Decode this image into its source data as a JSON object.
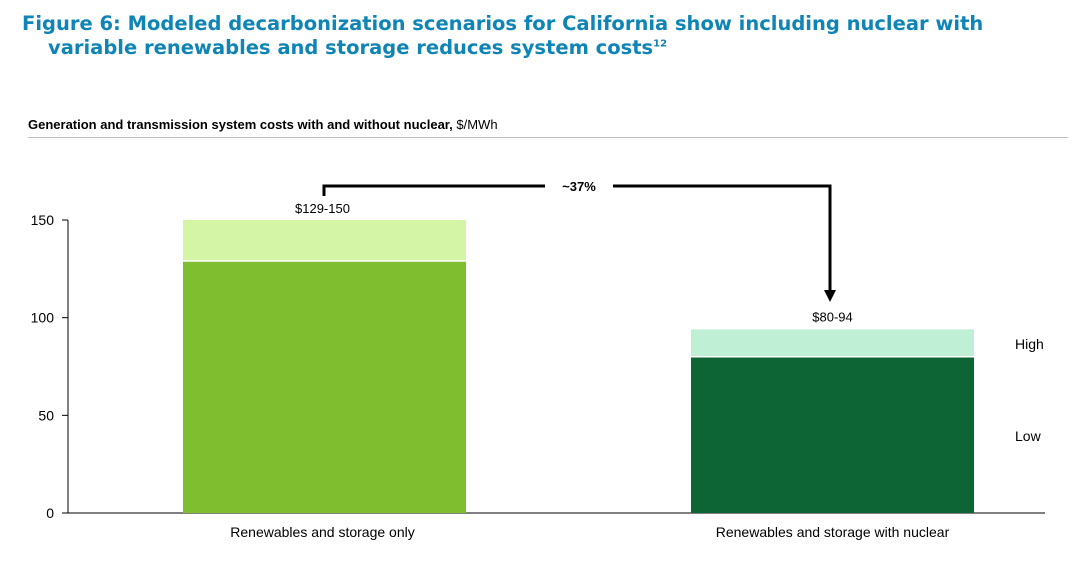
{
  "figure": {
    "title_line1": "Figure 6: Modeled decarbonization scenarios for California show including nuclear with",
    "title_line2": "variable renewables and storage reduces system costs",
    "title_footnote": "12",
    "subtitle_bold": "Generation and transmission system costs with and without nuclear,",
    "subtitle_unit": " $/MWh"
  },
  "chart_data": {
    "type": "bar",
    "stacked": true,
    "categories": [
      "Renewables and storage only",
      "Renewables and storage with nuclear"
    ],
    "series": [
      {
        "name": "Low",
        "values": [
          129,
          80
        ]
      },
      {
        "name": "High",
        "values": [
          21,
          14
        ]
      }
    ],
    "totals": [
      150,
      94
    ],
    "data_labels": [
      "$129-150",
      "$80-94"
    ],
    "ylim": [
      0,
      150
    ],
    "yticks": [
      0,
      50,
      100,
      150
    ],
    "legend_position": "right",
    "annotation": {
      "text": "~37%",
      "from": 0,
      "to": 1
    },
    "colors": {
      "bar0_low": "#7fbe2e",
      "bar0_high": "#d5f5a6",
      "bar1_low": "#0d6535",
      "bar1_high": "#bff0d6",
      "axis": "#000000",
      "title": "#0f84b7"
    }
  }
}
